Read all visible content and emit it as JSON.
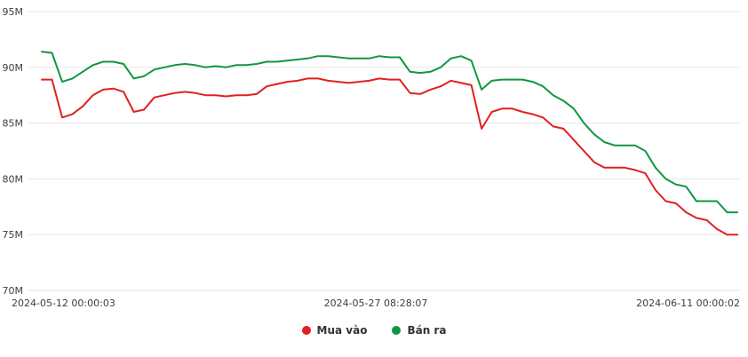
{
  "chart_data": {
    "type": "line",
    "title": "",
    "unit": "M",
    "ylim": [
      70,
      95
    ],
    "y_ticks": [
      95,
      90,
      85,
      80,
      75,
      70
    ],
    "y_tick_labels": [
      "95M",
      "90M",
      "85M",
      "80M",
      "75M",
      "70M"
    ],
    "x_tick_labels": [
      "2024-05-12 00:00:03",
      "2024-05-27 08:28:07",
      "2024-06-11 00:00:02"
    ],
    "x_range": [
      "2024-05-12 00:00:03",
      "2024-06-11 00:00:02"
    ],
    "grid": "horizontal",
    "legend_position": "bottom-center",
    "series": [
      {
        "name": "Mua vào",
        "color": "#e02020",
        "values": [
          88.9,
          88.9,
          85.5,
          85.8,
          86.5,
          87.5,
          88.0,
          88.1,
          87.8,
          86.0,
          86.2,
          87.3,
          87.5,
          87.7,
          87.8,
          87.7,
          87.5,
          87.5,
          87.4,
          87.5,
          87.5,
          87.6,
          88.3,
          88.5,
          88.7,
          88.8,
          89.0,
          89.0,
          88.8,
          88.7,
          88.6,
          88.7,
          88.8,
          89.0,
          88.9,
          88.9,
          87.7,
          87.6,
          88.0,
          88.3,
          88.8,
          88.6,
          88.4,
          84.5,
          86.0,
          86.3,
          86.3,
          86.0,
          85.8,
          85.5,
          84.7,
          84.5,
          83.5,
          82.5,
          81.5,
          81.0,
          81.0,
          81.0,
          80.8,
          80.5,
          79.0,
          78.0,
          77.8,
          77.0,
          76.5,
          76.3,
          75.5,
          75.0,
          75.0
        ]
      },
      {
        "name": "Bán ra",
        "color": "#11963f",
        "values": [
          91.4,
          91.3,
          88.7,
          89.0,
          89.6,
          90.2,
          90.5,
          90.5,
          90.3,
          89.0,
          89.2,
          89.8,
          90.0,
          90.2,
          90.3,
          90.2,
          90.0,
          90.1,
          90.0,
          90.2,
          90.2,
          90.3,
          90.5,
          90.5,
          90.6,
          90.7,
          90.8,
          91.0,
          91.0,
          90.9,
          90.8,
          90.8,
          90.8,
          91.0,
          90.9,
          90.9,
          89.6,
          89.5,
          89.6,
          90.0,
          90.8,
          91.0,
          90.6,
          88.0,
          88.8,
          88.9,
          88.9,
          88.9,
          88.7,
          88.3,
          87.5,
          87.0,
          86.3,
          85.0,
          84.0,
          83.3,
          83.0,
          83.0,
          83.0,
          82.5,
          81.0,
          80.0,
          79.5,
          79.3,
          78.0,
          78.0,
          78.0,
          77.0,
          77.0
        ]
      }
    ]
  },
  "colors": {
    "background": "#ffffff",
    "grid": "#e7e7e7",
    "axis_text": "#3d3d3d"
  }
}
